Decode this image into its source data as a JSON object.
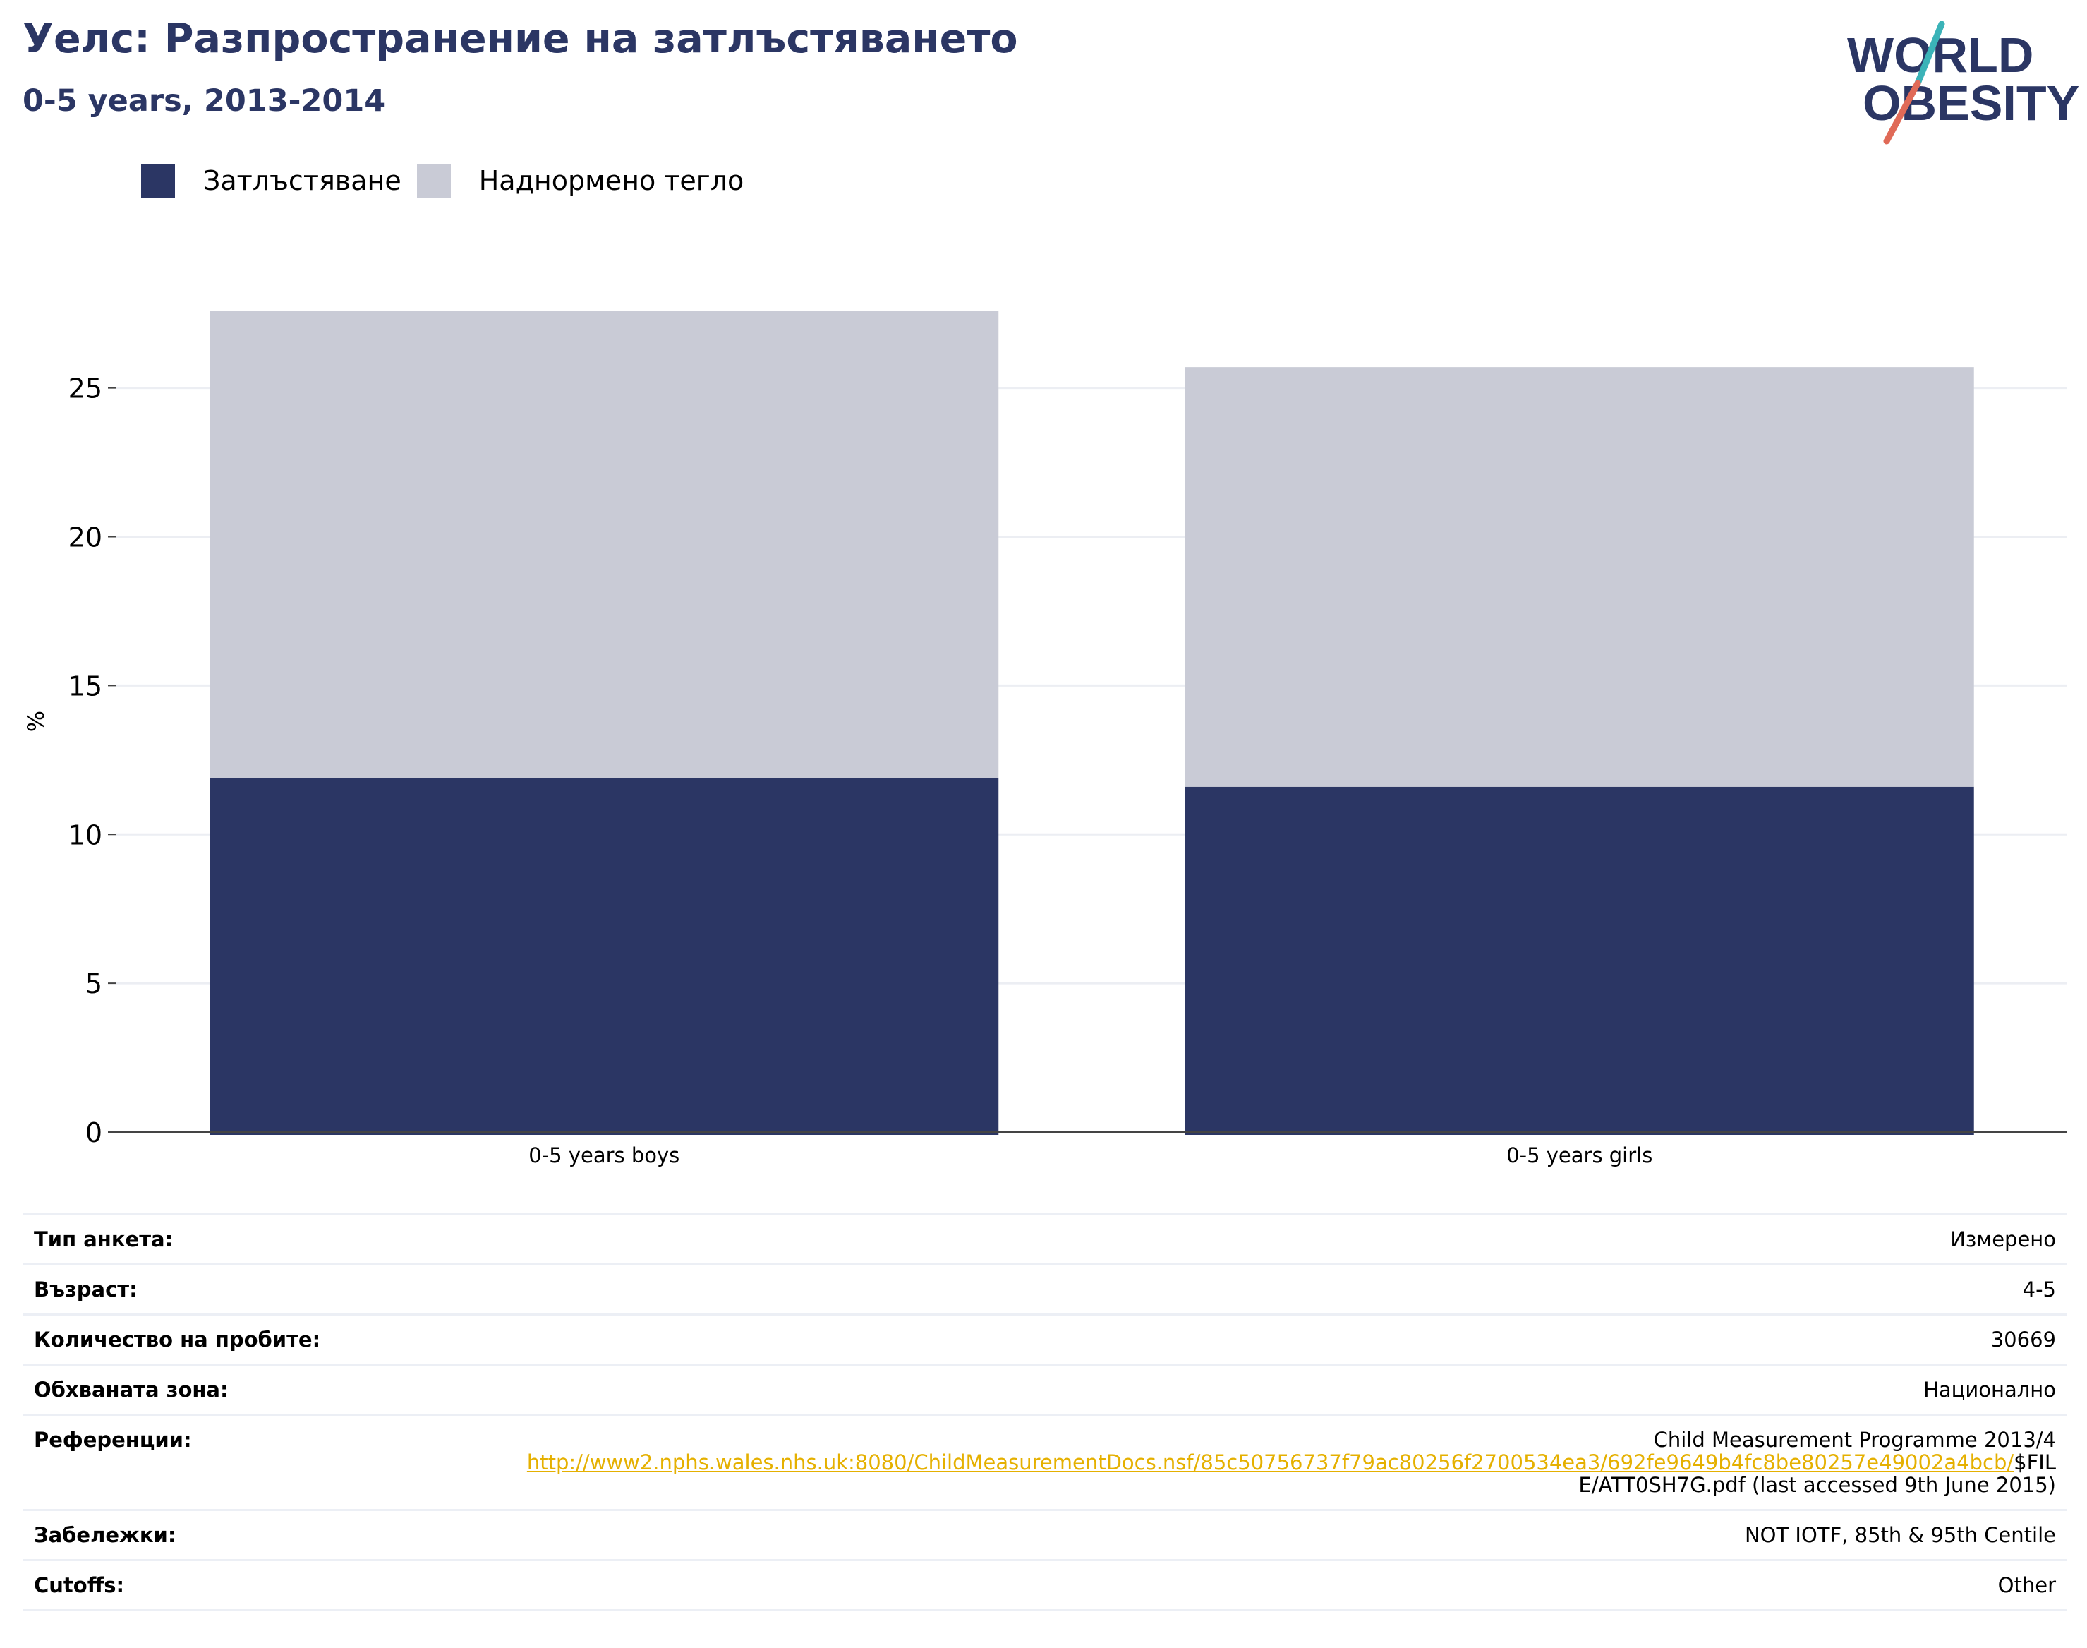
{
  "header": {
    "title": "Уелс: Разпространение на затлъстяването",
    "subtitle": "0-5 years, 2013-2014"
  },
  "logo": {
    "line1": "WORLD",
    "line2": "OBESITY",
    "colors": {
      "text": "#2b3664",
      "slash_teal": "#3bb3b8",
      "slash_red": "#e06a57"
    }
  },
  "legend": [
    {
      "label": "Затлъстяване",
      "color": "#2b3664"
    },
    {
      "label": "Наднормено тегло",
      "color": "#c9cbd6"
    }
  ],
  "chart_data": {
    "type": "bar",
    "stacked": true,
    "title": "Уелс: Разпространение на затлъстяването",
    "subtitle": "0-5 years, 2013-2014",
    "ylabel": "%",
    "xlabel": "",
    "categories": [
      "0-5 years boys",
      "0-5 years girls"
    ],
    "series": [
      {
        "name": "Затлъстяване",
        "color": "#2b3664",
        "values": [
          11.9,
          11.6
        ]
      },
      {
        "name": "Наднормено тегло",
        "color": "#c9cbd6",
        "values": [
          15.7,
          14.1
        ]
      }
    ],
    "ylim": [
      0,
      27.6
    ],
    "yticks": [
      0,
      5,
      10,
      15,
      20,
      25
    ],
    "grid": true,
    "legend_position": "top-left"
  },
  "info": [
    {
      "label": "Тип анкета:",
      "value": "Измерено"
    },
    {
      "label": "Възраст:",
      "value": "4-5"
    },
    {
      "label": "Количество на пробите:",
      "value": "30669"
    },
    {
      "label": "Обхваната зона:",
      "value": "Национално"
    },
    {
      "label": "Референции:",
      "value": "Child Measurement Programme 2013/4",
      "link": "http://www2.nphs.wales.nhs.uk:8080/ChildMeasurementDocs.nsf/85c50756737f79ac80256f2700534ea3/692fe9649b4fc8be80257e49002a4bcb/",
      "suffix": "$FILE/ATT0SH7G.pdf (last accessed 9th June 2015)"
    },
    {
      "label": "Забележки:",
      "value": "NOT IOTF, 85th & 95th Centile"
    },
    {
      "label": "Cutoffs:",
      "value": "Other"
    }
  ]
}
